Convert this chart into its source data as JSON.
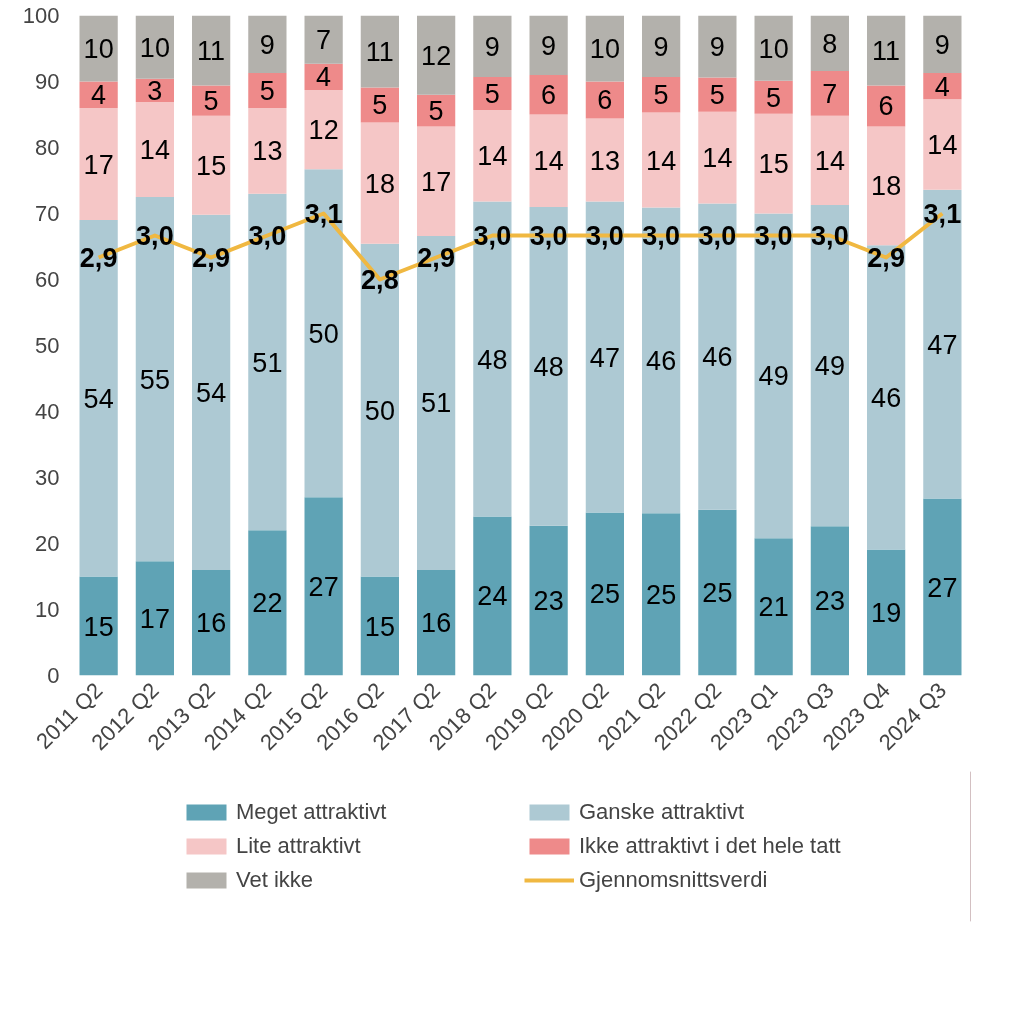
{
  "chart_data": {
    "type": "bar",
    "stacked": true,
    "categories": [
      "2011 Q2",
      "2012 Q2",
      "2013 Q2",
      "2014 Q2",
      "2015 Q2",
      "2016 Q2",
      "2017 Q2",
      "2018 Q2",
      "2019 Q2",
      "2020 Q2",
      "2021 Q2",
      "2022 Q2",
      "2023 Q1",
      "2023 Q3",
      "2023 Q4",
      "2024 Q3"
    ],
    "series": [
      {
        "name": "Meget attraktivt",
        "color": "#5fa3b5",
        "values": [
          15,
          17.3,
          16,
          22,
          27,
          15,
          16,
          24.1,
          22.7,
          24.7,
          24.6,
          25.1,
          20.8,
          22.6,
          19.1,
          26.8
        ],
        "value_labels": [
          "15",
          "17",
          "16",
          "22",
          "27",
          "15",
          "16",
          "24",
          "23",
          "25",
          "25",
          "25",
          "21",
          "23",
          "19",
          "27"
        ]
      },
      {
        "name": "Ganske attraktivt",
        "color": "#adc9d3",
        "values": [
          54,
          55.2,
          53.8,
          51,
          49.7,
          50.4,
          50.6,
          47.7,
          48.3,
          47.1,
          46.3,
          46.4,
          49.2,
          48.7,
          46.1,
          46.8
        ],
        "value_labels": [
          "54",
          "55",
          "54",
          "51",
          "50",
          "50",
          "51",
          "48",
          "48",
          "47",
          "46",
          "46",
          "49",
          "49",
          "46",
          "47"
        ]
      },
      {
        "name": "Lite attraktivt",
        "color": "#f5c6c6",
        "values": [
          17,
          14.4,
          15,
          13,
          12,
          18.4,
          16.6,
          13.9,
          14,
          12.6,
          14.4,
          13.9,
          15.1,
          13.5,
          18,
          13.7
        ],
        "value_labels": [
          "17",
          "14",
          "15",
          "13",
          "12",
          "18",
          "17",
          "14",
          "14",
          "13",
          "14",
          "14",
          "15",
          "14",
          "18",
          "14"
        ]
      },
      {
        "name": "Ikke attraktivt i det hele tatt",
        "color": "#ee8a8a",
        "values": [
          4,
          3.5,
          4.6,
          5.3,
          4,
          5.3,
          4.8,
          5,
          6,
          5.6,
          5.4,
          5.2,
          5,
          6.8,
          6.2,
          4
        ],
        "value_labels": [
          "4",
          "3",
          "5",
          "5",
          "4",
          "5",
          "5",
          "5",
          "6",
          "6",
          "5",
          "5",
          "5",
          "7",
          "6",
          "4"
        ]
      },
      {
        "name": "Vet ikke",
        "color": "#b3b1ac",
        "values": [
          10,
          9.6,
          10.6,
          8.7,
          7.3,
          10.9,
          12,
          9.3,
          9,
          10,
          9.3,
          9.4,
          9.9,
          8.4,
          10.6,
          8.7
        ],
        "value_labels": [
          "10",
          "10",
          "11",
          "9",
          "7",
          "11",
          "12",
          "9",
          "9",
          "10",
          "9",
          "9",
          "10",
          "8",
          "11",
          "9"
        ]
      },
      {
        "name": "Gjennomsnittsverdi",
        "type": "line",
        "axis": "y2",
        "color": "#f0b841",
        "values": [
          2.9,
          3.0,
          2.9,
          3.0,
          3.1,
          2.8,
          2.9,
          3.0,
          3.0,
          3.0,
          3.0,
          3.0,
          3.0,
          3.0,
          2.9,
          3.1
        ],
        "value_labels": [
          "2,9",
          "3,0",
          "2,9",
          "3,0",
          "3,1",
          "2,8",
          "2,9",
          "3,0",
          "3,0",
          "3,0",
          "3,0",
          "3,0",
          "3,0",
          "3,0",
          "2,9",
          "3,1"
        ]
      }
    ],
    "ylim": [
      0,
      100
    ],
    "yticks": [
      0,
      10,
      20,
      30,
      40,
      50,
      60,
      70,
      80,
      90,
      100
    ],
    "y2lim": [
      1,
      4
    ],
    "legend": "bottom"
  }
}
